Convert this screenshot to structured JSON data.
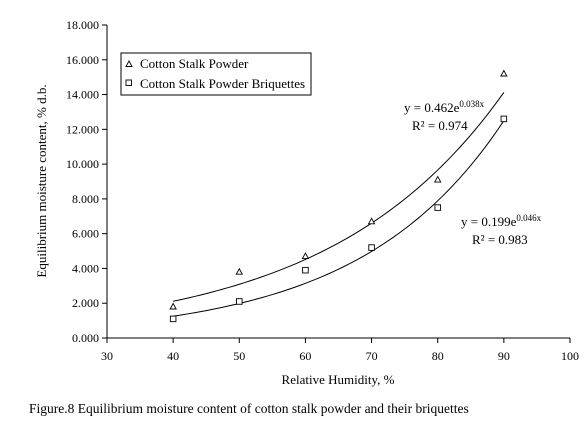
{
  "chart_data": {
    "type": "scatter",
    "xlabel": "Relative Humidity, %",
    "ylabel": "Equilibrium moisture content, % d.b.",
    "xlim": [
      30,
      100
    ],
    "ylim": [
      0,
      18
    ],
    "x_ticks": [
      "30",
      "40",
      "50",
      "60",
      "70",
      "80",
      "90",
      "100"
    ],
    "y_ticks": [
      "0.000",
      "2.000",
      "4.000",
      "6.000",
      "8.000",
      "10.000",
      "12.000",
      "14.000",
      "16.000",
      "18.000"
    ],
    "grid": false,
    "legend_position": "top-left",
    "series": [
      {
        "name": "Cotton Stalk Powder",
        "marker": "triangle",
        "x": [
          40,
          50,
          60,
          70,
          80,
          90
        ],
        "y": [
          1.8,
          3.8,
          4.7,
          6.7,
          9.1,
          15.2
        ],
        "trendline": {
          "a": 0.462,
          "b": 0.038,
          "equation": "y = 0.462e",
          "exponent": "0.038x",
          "r2": "R² = 0.974"
        }
      },
      {
        "name": "Cotton Stalk Powder Briquettes",
        "marker": "square",
        "x": [
          40,
          50,
          60,
          70,
          80,
          90
        ],
        "y": [
          1.1,
          2.1,
          3.9,
          5.2,
          7.5,
          12.6
        ],
        "trendline": {
          "a": 0.199,
          "b": 0.046,
          "equation": "y = 0.199e",
          "exponent": "0.046x",
          "r2": "R² = 0.983"
        }
      }
    ]
  },
  "caption": "Figure.8 Equilibrium moisture content of cotton stalk powder and their briquettes"
}
